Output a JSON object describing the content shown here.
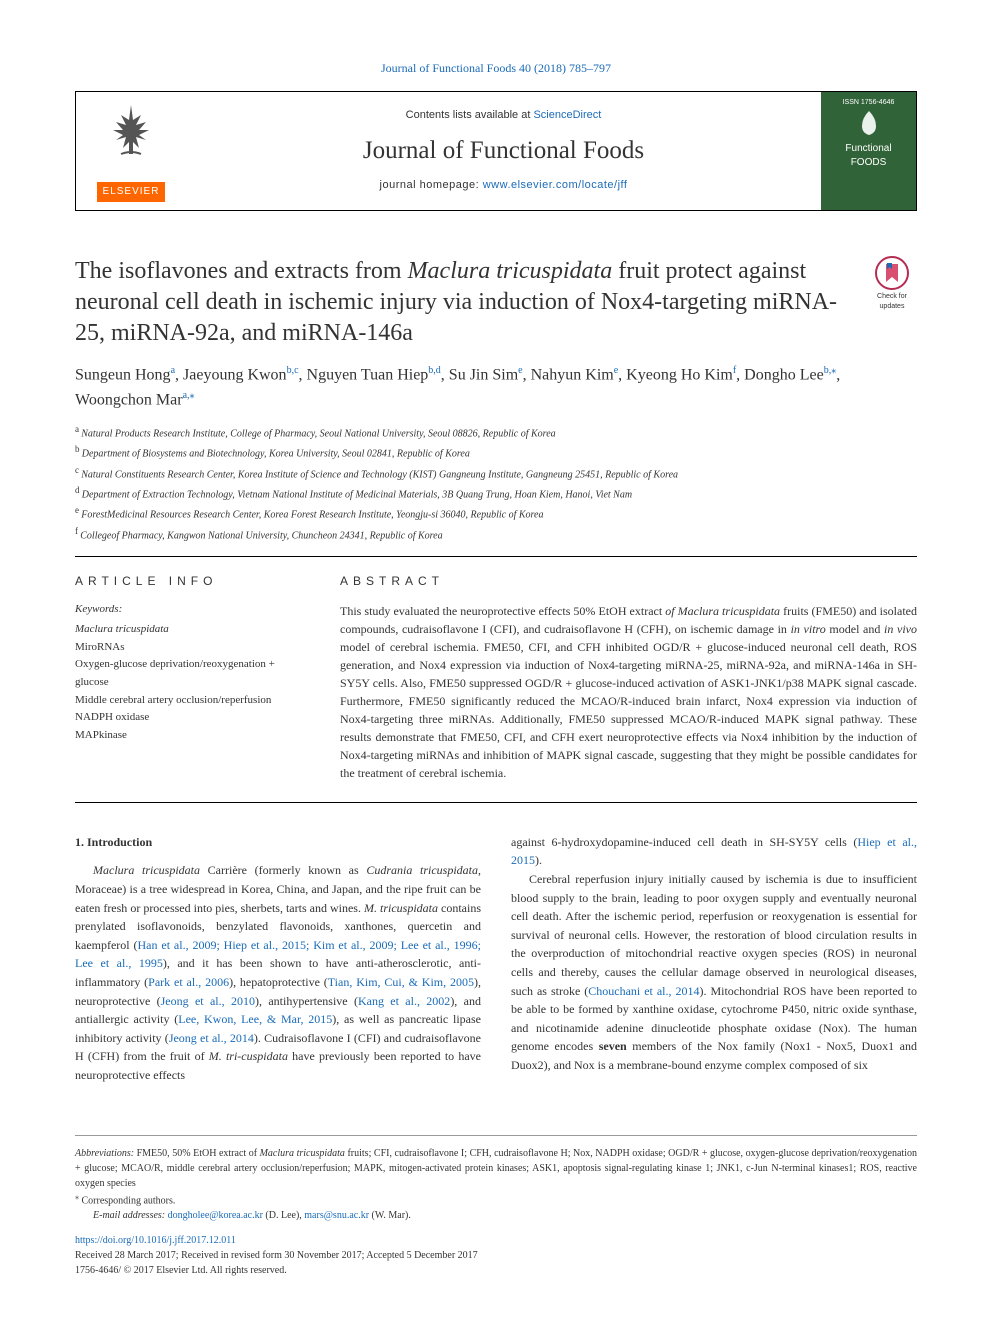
{
  "topCitation": {
    "text": "Journal of Functional Foods 40 (2018) 785–797",
    "url": "#"
  },
  "header": {
    "contentsLine": "Contents lists available at ",
    "contentsLink": "ScienceDirect",
    "journalName": "Journal of Functional Foods",
    "homepagePrefix": "journal homepage: ",
    "homepageLink": "www.elsevier.com/locate/jff",
    "elsevierLabel": "ELSEVIER",
    "rightISSN": "ISSN 1756-4646",
    "rightLogoTop": "Functional",
    "rightLogoBottom": "FOODS"
  },
  "checkUpdates": "Check for updates",
  "title": {
    "pre": "The isoflavones and extracts from ",
    "italic": "Maclura tricuspidata",
    "post": " fruit protect against neuronal cell death in ischemic injury via induction of Nox4-targeting miRNA-25, miRNA-92a, and miRNA-146a"
  },
  "authors": [
    {
      "name": "Sungeun Hong",
      "sup": "a"
    },
    {
      "name": "Jaeyoung Kwon",
      "sup": "b,c"
    },
    {
      "name": "Nguyen Tuan Hiep",
      "sup": "b,d"
    },
    {
      "name": "Su Jin Sim",
      "sup": "e"
    },
    {
      "name": "Nahyun Kim",
      "sup": "e"
    },
    {
      "name": "Kyeong Ho Kim",
      "sup": "f"
    },
    {
      "name": "Dongho Lee",
      "sup": "b,⁎"
    },
    {
      "name": "Woongchon Mar",
      "sup": "a,⁎"
    }
  ],
  "affiliations": [
    {
      "sup": "a",
      "text": "Natural Products Research Institute, College of Pharmacy, Seoul National University, Seoul 08826, Republic of Korea"
    },
    {
      "sup": "b",
      "text": "Department of Biosystems and Biotechnology, Korea University, Seoul 02841, Republic of Korea"
    },
    {
      "sup": "c",
      "text": "Natural Constituents Research Center, Korea Institute of Science and Technology (KIST) Gangneung Institute, Gangneung 25451, Republic of Korea"
    },
    {
      "sup": "d",
      "text": "Department of Extraction Technology, Vietnam National Institute of Medicinal Materials, 3B Quang Trung, Hoan Kiem, Hanoi, Viet Nam"
    },
    {
      "sup": "e",
      "text": "ForestMedicinal Resources Research Center, Korea Forest Research Institute, Yeongju-si 36040, Republic of Korea"
    },
    {
      "sup": "f",
      "text": "Collegeof Pharmacy, Kangwon National University, Chuncheon 24341, Republic of Korea"
    }
  ],
  "articleInfo": {
    "heading": "ARTICLE INFO",
    "keywordsLabel": "Keywords:",
    "keywords": [
      {
        "text": "Maclura tricuspidata",
        "italic": true
      },
      {
        "text": "MiroRNAs",
        "italic": false
      },
      {
        "text": "Oxygen-glucose deprivation/reoxygenation + glucose",
        "italic": false
      },
      {
        "text": "Middle cerebral artery occlusion/reperfusion",
        "italic": false
      },
      {
        "text": "NADPH oxidase",
        "italic": false
      },
      {
        "text": "MAPkinase",
        "italic": false
      }
    ]
  },
  "abstract": {
    "heading": "ABSTRACT",
    "text": "This study evaluated the neuroprotective effects 50% EtOH extract of Maclura tricuspidata fruits (FME50) and isolated compounds, cudraisoflavone I (CFI), and cudraisoflavone H (CFH), on ischemic damage in in vitro model and in vivo model of cerebral ischemia. FME50, CFI, and CFH inhibited OGD/R + glucose-induced neuronal cell death, ROS generation, and Nox4 expression via induction of Nox4-targeting miRNA-25, miRNA-92a, and miRNA-146a in SH-SY5Y cells. Also, FME50 suppressed OGD/R + glucose-induced activation of ASK1-JNK1/p38 MAPK signal cascade. Furthermore, FME50 significantly reduced the MCAO/R-induced brain infarct, Nox4 expression via induction of Nox4-targeting three miRNAs. Additionally, FME50 suppressed MCAO/R-induced MAPK signal pathway. These results demonstrate that FME50, CFI, and CFH exert neuroprotective effects via Nox4 inhibition by the induction of Nox4-targeting miRNAs and inhibition of MAPK signal cascade, suggesting that they might be possible candidates for the treatment of cerebral ischemia."
  },
  "section1": {
    "heading": "1. Introduction",
    "col1": {
      "para1": {
        "pre": "Maclura tricuspidata",
        "post": " Carrière (formerly known as Cudrania tricuspidata, Moraceae) is a tree widespread in Korea, China, and Japan, and the ripe fruit can be eaten fresh or processed into pies, sherbets, tarts and wines. M. tricuspidata contains prenylated isoflavonoids, benzylated flavonoids, xanthones, quercetin and kaempferol (",
        "links": "Han et al., 2009; Hiep et al., 2015; Kim et al., 2009; Lee et al., 1996; Lee et al., 1995",
        "post2": "), and it has been shown to have anti-atherosclerotic, anti-inflammatory (",
        "link2": "Park et al., 2006",
        "post3": "), hepatoprotective (",
        "link3": "Tian, Kim, Cui, & Kim, 2005",
        "post4": "), neuroprotective (",
        "link4": "Jeong et al., 2010",
        "post5": "), antihypertensive (",
        "link5": "Kang et al., 2002",
        "post6": "), and antiallergic activity (",
        "link6": "Lee, Kwon, Lee, & Mar, 2015",
        "post7": "), as well as pancreatic lipase inhibitory activity (",
        "link7": "Jeong et al., 2014",
        "post8": "). Cudraisoflavone I (CFI) and cudraisoflavone H (CFH) from the fruit of M. tricuspidata have previously been reported to have neuroprotective effects"
      }
    },
    "col2": {
      "para1": {
        "pre": "against 6-hydroxydopamine-induced cell death in SH-SY5Y cells (",
        "link1": "Hiep et al., 2015",
        "post1": ")."
      },
      "para2": {
        "pre": "Cerebral reperfusion injury initially caused by ischemia is due to insufficient blood supply to the brain, leading to poor oxygen supply and eventually neuronal cell death. After the ischemic period, reperfusion or reoxygenation is essential for survival of neuronal cells. However, the restoration of blood circulation results in the overproduction of mitochondrial reactive oxygen species (ROS) in neuronal cells and thereby, causes the cellular damage observed in neurological diseases, such as stroke (",
        "link1": "Chouchani et al., 2014",
        "post1": "). Mitochondrial ROS have been reported to be able to be formed by xanthine oxidase, cytochrome P450, nitric oxide synthase, and nicotinamide adenine dinucleotide phosphate oxidase (Nox). The human genome encodes ",
        "bold1": "seven",
        "post2": " members of the Nox family (Nox1 - Nox5, Duox1 and Duox2), and Nox is a membrane-bound enzyme complex composed of six"
      }
    }
  },
  "footer": {
    "abbrevLabel": "Abbreviations:",
    "abbrevText": " FME50, 50% EtOH extract of Maclura tricuspidata fruits; CFI, cudraisoflavone I; CFH, cudraisoflavone H; Nox, NADPH oxidase; OGD/R + glucose, oxygen-glucose deprivation/reoxygenation + glucose; MCAO/R, middle cerebral artery occlusion/reperfusion; MAPK, mitogen-activated protein kinases; ASK1, apoptosis signal-regulating kinase 1; JNK1, c-Jun N-terminal kinases1; ROS, reactive oxygen species",
    "correspondingLabel": "⁎ Corresponding authors.",
    "emailLabel": "E-mail addresses:",
    "email1": "dongholee@korea.ac.kr",
    "email1Name": " (D. Lee), ",
    "email2": "mars@snu.ac.kr",
    "email2Name": " (W. Mar).",
    "doi": "https://doi.org/10.1016/j.jff.2017.12.011",
    "received": "Received 28 March 2017; Received in revised form 30 November 2017; Accepted 5 December 2017",
    "copyright": "1756-4646/ © 2017 Elsevier Ltd. All rights reserved."
  }
}
